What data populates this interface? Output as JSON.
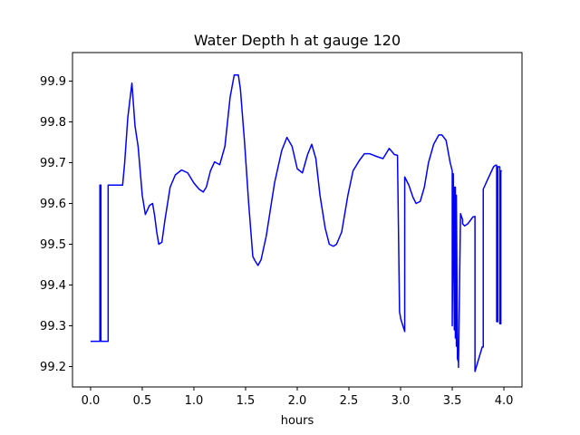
{
  "chart_data": {
    "type": "line",
    "title": "Water Depth h at gauge 120",
    "xlabel": "hours",
    "ylabel": "",
    "xlim": [
      -0.175,
      4.175
    ],
    "ylim": [
      99.15,
      99.97
    ],
    "xticks": [
      0.0,
      0.5,
      1.0,
      1.5,
      2.0,
      2.5,
      3.0,
      3.5,
      4.0
    ],
    "xtick_labels": [
      "0.0",
      "0.5",
      "1.0",
      "1.5",
      "2.0",
      "2.5",
      "3.0",
      "3.5",
      "4.0"
    ],
    "yticks": [
      99.2,
      99.3,
      99.4,
      99.5,
      99.6,
      99.7,
      99.8,
      99.9
    ],
    "ytick_labels": [
      "99.2",
      "99.3",
      "99.4",
      "99.5",
      "99.6",
      "99.7",
      "99.8",
      "99.9"
    ],
    "grid": false,
    "series": [
      {
        "color": "#0000ff",
        "x": [
          0.0,
          0.09,
          0.09,
          0.1,
          0.1,
          0.17,
          0.17,
          0.25,
          0.31,
          0.33,
          0.36,
          0.4,
          0.43,
          0.46,
          0.5,
          0.53,
          0.57,
          0.6,
          0.62,
          0.64,
          0.66,
          0.69,
          0.72,
          0.77,
          0.82,
          0.88,
          0.94,
          1.0,
          1.05,
          1.09,
          1.12,
          1.16,
          1.2,
          1.25,
          1.3,
          1.35,
          1.39,
          1.43,
          1.45,
          1.49,
          1.53,
          1.57,
          1.59,
          1.62,
          1.65,
          1.7,
          1.78,
          1.85,
          1.9,
          1.95,
          2.0,
          2.05,
          2.1,
          2.14,
          2.18,
          2.22,
          2.27,
          2.31,
          2.35,
          2.38,
          2.43,
          2.49,
          2.54,
          2.6,
          2.65,
          2.7,
          2.77,
          2.83,
          2.89,
          2.94,
          2.97,
          2.99,
          3.0,
          3.0,
          3.04,
          3.04,
          3.08,
          3.12,
          3.15,
          3.19,
          3.23,
          3.27,
          3.32,
          3.37,
          3.4,
          3.44,
          3.48,
          3.5,
          3.5,
          3.51,
          3.52,
          3.52,
          3.53,
          3.53,
          3.54,
          3.54,
          3.55,
          3.55,
          3.56,
          3.56,
          3.58,
          3.6,
          3.6,
          3.62,
          3.65,
          3.68,
          3.7,
          3.72,
          3.72,
          3.79,
          3.8,
          3.8,
          3.85,
          3.9,
          3.92,
          3.93,
          3.93,
          3.94,
          3.94,
          3.96,
          3.96,
          3.97,
          3.97,
          3.98
        ],
        "y": [
          99.262,
          99.262,
          99.645,
          99.645,
          99.262,
          99.262,
          99.645,
          99.645,
          99.645,
          99.7,
          99.81,
          99.895,
          99.79,
          99.74,
          99.62,
          99.573,
          99.595,
          99.6,
          99.57,
          99.53,
          99.5,
          99.505,
          99.56,
          99.64,
          99.67,
          99.682,
          99.675,
          99.65,
          99.635,
          99.628,
          99.64,
          99.68,
          99.702,
          99.695,
          99.74,
          99.86,
          99.915,
          99.915,
          99.88,
          99.75,
          99.6,
          99.47,
          99.46,
          99.448,
          99.462,
          99.52,
          99.65,
          99.73,
          99.762,
          99.74,
          99.685,
          99.675,
          99.72,
          99.745,
          99.71,
          99.62,
          99.54,
          99.5,
          99.495,
          99.5,
          99.53,
          99.62,
          99.68,
          99.705,
          99.722,
          99.722,
          99.715,
          99.71,
          99.735,
          99.72,
          99.718,
          99.334,
          99.32,
          99.318,
          99.286,
          99.665,
          99.645,
          99.615,
          99.6,
          99.605,
          99.64,
          99.7,
          99.745,
          99.768,
          99.768,
          99.755,
          99.7,
          99.68,
          99.3,
          99.673,
          99.29,
          99.64,
          99.27,
          99.64,
          99.25,
          99.62,
          99.24,
          99.22,
          99.21,
          99.198,
          99.575,
          99.56,
          99.55,
          99.545,
          99.55,
          99.56,
          99.567,
          99.568,
          99.188,
          99.248,
          99.248,
          99.635,
          99.663,
          99.69,
          99.694,
          99.694,
          99.31,
          99.31,
          99.69,
          99.69,
          99.305,
          99.305,
          99.68,
          99.68
        ]
      }
    ]
  }
}
